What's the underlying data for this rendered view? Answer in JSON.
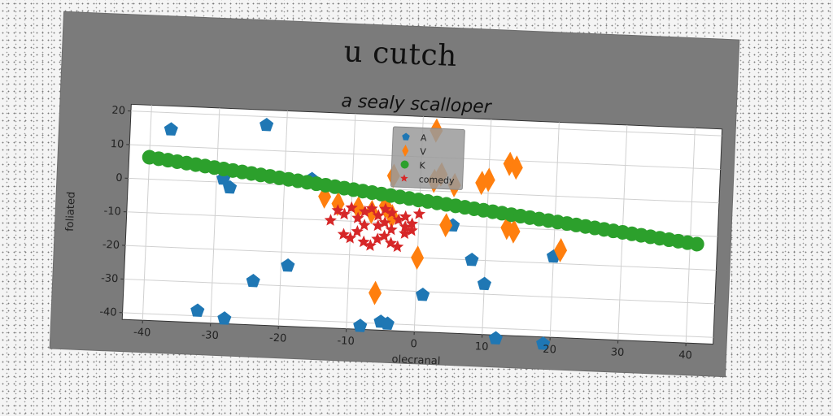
{
  "chart_data": {
    "type": "scatter",
    "suptitle": "u cutch",
    "title": "a sealy scalloper",
    "xlabel": "olecranal",
    "ylabel": "foliated",
    "xlim": [
      -43,
      44
    ],
    "ylim": [
      -42,
      22
    ],
    "xticks": [
      -40,
      -30,
      -20,
      -10,
      0,
      10,
      20,
      30,
      40
    ],
    "yticks": [
      20,
      10,
      0,
      -10,
      -20,
      -30,
      -40
    ],
    "grid": true,
    "legend_position": "top-center",
    "series": [
      {
        "name": "A",
        "marker": "pentagon",
        "color": "#1f77b4",
        "points": [
          [
            -37,
            15
          ],
          [
            -23,
            17.5
          ],
          [
            -29,
            1
          ],
          [
            -28,
            -1.5
          ],
          [
            -16,
            2
          ],
          [
            -19,
            -24
          ],
          [
            -24,
            -29
          ],
          [
            -32,
            -38.5
          ],
          [
            -28,
            -40.5
          ],
          [
            -8,
            -41
          ],
          [
            -5,
            -39.5
          ],
          [
            -4,
            -40
          ],
          [
            1,
            -31
          ],
          [
            5,
            -10
          ],
          [
            8,
            -20
          ],
          [
            10,
            -27
          ],
          [
            12,
            -43
          ],
          [
            19,
            -44
          ],
          [
            20,
            -18
          ]
        ]
      },
      {
        "name": "V",
        "marker": "thin_diamond",
        "color": "#ff7f0e",
        "points": [
          [
            -14,
            -3
          ],
          [
            -12,
            -5
          ],
          [
            -9,
            -6
          ],
          [
            -7,
            -7
          ],
          [
            -4,
            -8
          ],
          [
            -5,
            -5
          ],
          [
            -4,
            4
          ],
          [
            2,
            3
          ],
          [
            5,
            2
          ],
          [
            2,
            18
          ],
          [
            3,
            5
          ],
          [
            4,
            -10
          ],
          [
            0,
            -20
          ],
          [
            -6,
            -31
          ],
          [
            9,
            3
          ],
          [
            10,
            4
          ],
          [
            13,
            9
          ],
          [
            14,
            8
          ],
          [
            13,
            -10
          ],
          [
            14,
            -11
          ],
          [
            21,
            -16
          ]
        ]
      },
      {
        "name": "K",
        "marker": "circle",
        "color": "#2ca02c",
        "line": {
          "x_start": -40,
          "y_start": 6.5,
          "x_end": 41,
          "y_end": -12.5,
          "count": 60
        }
      },
      {
        "name": "comedy",
        "marker": "star",
        "color": "#d62728",
        "points": [
          [
            -12,
            -7
          ],
          [
            -11,
            -8
          ],
          [
            -10,
            -6
          ],
          [
            -9,
            -9
          ],
          [
            -8,
            -7
          ],
          [
            -7,
            -6
          ],
          [
            -6,
            -8
          ],
          [
            -5,
            -10
          ],
          [
            -4,
            -7
          ],
          [
            -3,
            -9
          ],
          [
            -2,
            -8
          ],
          [
            -1,
            -10
          ],
          [
            0,
            -7
          ],
          [
            -11,
            -14
          ],
          [
            -10,
            -15
          ],
          [
            -9,
            -13
          ],
          [
            -8,
            -16
          ],
          [
            -7,
            -17
          ],
          [
            -6,
            -15
          ],
          [
            -5,
            -14
          ],
          [
            -4,
            -16
          ],
          [
            -3,
            -17
          ],
          [
            -2,
            -13
          ],
          [
            -1,
            -12
          ],
          [
            -13,
            -10
          ],
          [
            -6,
            -11
          ],
          [
            -4,
            -12
          ],
          [
            -8,
            -11
          ],
          [
            -2,
            -11
          ],
          [
            -5,
            -6
          ]
        ]
      }
    ]
  }
}
